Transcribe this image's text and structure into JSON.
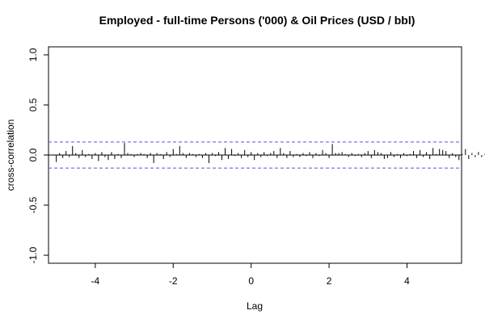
{
  "chart_data": {
    "type": "bar",
    "title": "Employed - full-time Persons ('000) & Oil Prices (USD / bbl)",
    "xlabel": "Lag",
    "ylabel": "cross-correlation",
    "xlim": [
      -5.2,
      5.4
    ],
    "ylim": [
      -1.08,
      1.08
    ],
    "x_ticks": [
      -4,
      -2,
      0,
      2,
      4
    ],
    "x_tick_labels": [
      "-4",
      "-2",
      "0",
      "2",
      "4"
    ],
    "y_ticks": [
      -1.0,
      -0.5,
      0.0,
      0.5,
      1.0
    ],
    "y_tick_labels": [
      "-1.0",
      "-0.5",
      "0.0",
      "0.5",
      "1.0"
    ],
    "confidence_bound": 0.13,
    "line_color": "#000000",
    "bound_color": "#5555dd",
    "lag_start": -5.0,
    "lag_step": 0.0833333,
    "values": [
      -0.07,
      0.02,
      -0.03,
      0.04,
      -0.02,
      0.09,
      0.02,
      -0.03,
      0.05,
      -0.02,
      0.01,
      -0.04,
      0.02,
      -0.06,
      0.03,
      -0.02,
      -0.05,
      0.03,
      -0.04,
      0.01,
      -0.03,
      0.12,
      0.02,
      0.01,
      -0.02,
      0.01,
      0.02,
      0.01,
      -0.03,
      0.02,
      -0.08,
      0.02,
      0.01,
      -0.04,
      0.03,
      -0.02,
      0.06,
      0.01,
      0.09,
      0.02,
      -0.03,
      0.02,
      0.01,
      -0.02,
      0.01,
      -0.03,
      0.02,
      -0.08,
      0.02,
      -0.01,
      0.03,
      -0.05,
      0.07,
      -0.04,
      0.06,
      -0.01,
      0.02,
      -0.03,
      0.05,
      -0.02,
      0.03,
      -0.05,
      0.02,
      -0.02,
      0.03,
      -0.01,
      0.02,
      0.04,
      -0.03,
      0.07,
      0.02,
      -0.03,
      0.04,
      -0.02,
      0.01,
      -0.02,
      0.02,
      -0.01,
      0.03,
      -0.03,
      0.02,
      -0.01,
      0.05,
      0.02,
      -0.03,
      0.11,
      0.02,
      0.02,
      0.03,
      0.01,
      -0.02,
      0.02,
      -0.01,
      0.01,
      -0.02,
      0.02,
      0.04,
      -0.03,
      0.05,
      0.03,
      0.02,
      -0.04,
      -0.03,
      0.03,
      -0.02,
      0.01,
      -0.03,
      0.02,
      -0.01,
      0.01,
      0.04,
      -0.03,
      0.05,
      -0.02,
      0.03,
      -0.04,
      0.07,
      0.01,
      0.06,
      0.05,
      0.04,
      -0.03,
      0.02,
      -0.02,
      -0.05,
      0.01,
      0.06,
      -0.04,
      0.02,
      -0.02,
      0.03,
      -0.02,
      0.01,
      0.02,
      -0.03,
      0.01,
      -0.02,
      0.01,
      0.02,
      -0.01,
      -0.04,
      0.01,
      0.01,
      0.02,
      0.01,
      -0.03,
      -0.04,
      0.09,
      -0.02,
      0.04,
      -0.01,
      0.02,
      -0.03,
      0.01,
      0.02,
      -0.01,
      0.03,
      -0.04,
      0.01,
      0.05,
      -0.01
    ]
  }
}
